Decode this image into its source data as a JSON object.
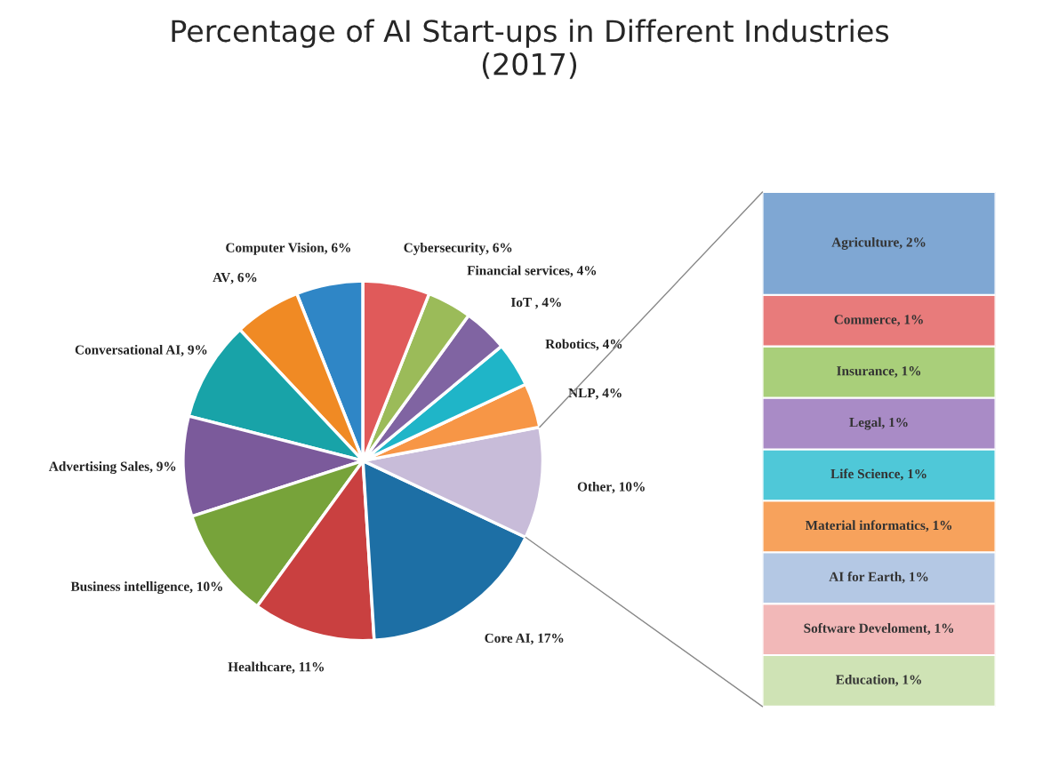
{
  "chart_data": [
    {
      "type": "pie",
      "title": "Percentage of AI Start-ups in Different Industries\n(2017)",
      "categories": [
        "Computer Vision",
        "AV",
        "Conversational AI",
        "Advertising Sales",
        "Business intelligence",
        "Healthcare",
        "Core AI",
        "Other",
        "NLP",
        "Robotics",
        "IoT ",
        "Financial services",
        "Cybersecurity"
      ],
      "values": [
        6,
        6,
        9,
        9,
        10,
        11,
        17,
        10,
        4,
        4,
        4,
        4,
        6
      ],
      "colors": [
        "#2f86c6",
        "#f08a24",
        "#18a3a8",
        "#7b5a9b",
        "#77a33a",
        "#c94040",
        "#1d6fa5",
        "#c8bcd9",
        "#f79646",
        "#1fb5c8",
        "#8064a2",
        "#9bbb59",
        "#e05a5a"
      ],
      "value_labels": [
        ", 6%",
        ", 6%",
        ", 9%",
        ", 9%",
        ", 10%",
        ", 11%",
        ", 17%",
        ", 10%",
        ", 4%",
        ", 4%",
        ", 4%",
        ", 4%",
        ", 6%"
      ],
      "legend": false
    },
    {
      "type": "bar",
      "stacked": true,
      "categories": [
        null
      ],
      "legend": false,
      "series": [
        {
          "color": "#cfe3b5",
          "values": [
            1
          ],
          "value_labels": [
            "Education, 1%"
          ]
        },
        {
          "color": "#f2b8b8",
          "values": [
            1
          ],
          "value_labels": [
            "Software Develoment, 1%"
          ]
        },
        {
          "color": "#b4c8e4",
          "values": [
            1
          ],
          "value_labels": [
            "AI for Earth, 1%"
          ]
        },
        {
          "color": "#f7a25c",
          "values": [
            1
          ],
          "value_labels": [
            "Material informatics, 1%"
          ]
        },
        {
          "color": "#4fc8d8",
          "values": [
            1
          ],
          "value_labels": [
            "Life Science, 1%"
          ]
        },
        {
          "color": "#a98bc6",
          "values": [
            1
          ],
          "value_labels": [
            "Legal, 1%"
          ]
        },
        {
          "color": "#a9cf7a",
          "values": [
            1
          ],
          "value_labels": [
            "Insurance, 1%"
          ]
        },
        {
          "color": "#e87b7b",
          "values": [
            1
          ],
          "value_labels": [
            "Commerce, 1%"
          ]
        },
        {
          "color": "#7fa7d3",
          "values": [
            2
          ],
          "value_labels": [
            "Agriculture, 2%"
          ]
        }
      ]
    }
  ]
}
